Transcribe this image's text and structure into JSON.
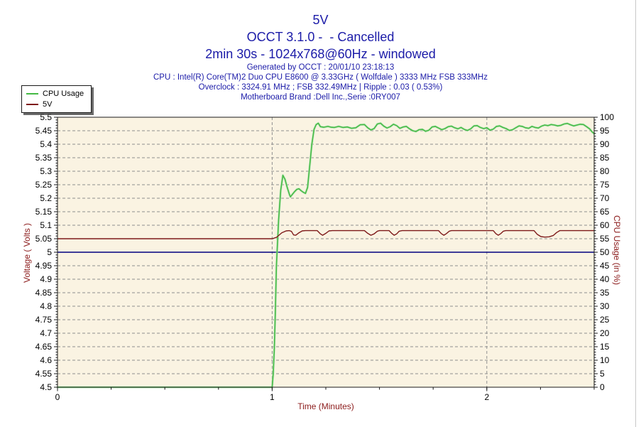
{
  "header": {
    "title": "5V",
    "subtitle": "OCCT 3.1.0 -  - Cancelled",
    "subtitle2": "2min 30s - 1024x768@60Hz - windowed",
    "info_lines": [
      "Generated by OCCT : 20/01/10 23:18:13",
      "CPU : Intel(R) Core(TM)2 Duo CPU E8600 @ 3.33GHz ( Wolfdale ) 3333 MHz FSB 333MHz",
      "Overclock : 3324.91 MHz ; FSB 332.49MHz | Ripple : 0.03 ( 0.53%)",
      "Motherboard Brand :Dell Inc.,Serie :0RY007"
    ]
  },
  "legend": {
    "position": "top-left",
    "items": [
      {
        "label": "CPU Usage",
        "color": "#44b944"
      },
      {
        "label": "5V",
        "color": "#7e1a1a"
      }
    ]
  },
  "colors": {
    "page_bg": "#ffffff",
    "header_text": "#1b1ba8",
    "axis_title": "#8b1a1a",
    "tick_label": "#000000",
    "plot_bg": "#faf3e2",
    "grid": "#8f8f8f",
    "border": "#1a1a1a",
    "cpu_line": "#44b944",
    "cpu_glow": "#b9e8b9",
    "volt_line": "#7e1a1a",
    "ref_line": "#00007f"
  },
  "chart_data": {
    "type": "line",
    "title": "5V",
    "xlabel": "Time (Minutes)",
    "ylabel_left": "Voltage ( Volts )",
    "ylabel_right": "CPU Usage (in %)",
    "xlim": [
      0,
      2.5
    ],
    "ylim_left": [
      4.5,
      5.5
    ],
    "ylim_right": [
      0,
      100
    ],
    "x_ticks": [
      "0",
      "1",
      "2"
    ],
    "x_minor_step": 0.25,
    "x_grid_lines": [
      1,
      2
    ],
    "y_left_ticks": [
      "4.5",
      "4.55",
      "4.6",
      "4.65",
      "4.7",
      "4.75",
      "4.8",
      "4.85",
      "4.9",
      "4.95",
      "5",
      "5.05",
      "5.1",
      "5.15",
      "5.2",
      "5.25",
      "5.3",
      "5.35",
      "5.4",
      "5.45",
      "5.5"
    ],
    "y_left_minor_step": 0.01,
    "y_right_ticks": [
      "0",
      "5",
      "10",
      "15",
      "20",
      "25",
      "30",
      "35",
      "40",
      "45",
      "50",
      "55",
      "60",
      "65",
      "70",
      "75",
      "80",
      "85",
      "90",
      "95",
      "100"
    ],
    "y_right_minor_step": 1,
    "grid": "horizontal dashed at each 0.05V, vertical dashed at whole minutes",
    "reference_line": {
      "axis": "left",
      "value": 5.0,
      "color": "#00007f"
    },
    "series": [
      {
        "name": "CPU Usage",
        "axis": "right",
        "color": "#44b944",
        "glow": "#b9e8b9",
        "points": [
          [
            0,
            0
          ],
          [
            0.2,
            0
          ],
          [
            0.4,
            0
          ],
          [
            0.6,
            0
          ],
          [
            0.8,
            0
          ],
          [
            0.99,
            0
          ],
          [
            1.0,
            0
          ],
          [
            1.005,
            5
          ],
          [
            1.01,
            14
          ],
          [
            1.015,
            28
          ],
          [
            1.02,
            45
          ],
          [
            1.03,
            62
          ],
          [
            1.04,
            73
          ],
          [
            1.05,
            78.5
          ],
          [
            1.06,
            77
          ],
          [
            1.07,
            74
          ],
          [
            1.08,
            71.5
          ],
          [
            1.085,
            70.5
          ],
          [
            1.095,
            71.5
          ],
          [
            1.105,
            72.5
          ],
          [
            1.115,
            73.3
          ],
          [
            1.125,
            73.5
          ],
          [
            1.135,
            72.8
          ],
          [
            1.145,
            72.2
          ],
          [
            1.155,
            71.8
          ],
          [
            1.165,
            74
          ],
          [
            1.175,
            82
          ],
          [
            1.185,
            90
          ],
          [
            1.195,
            95.5
          ],
          [
            1.205,
            97.3
          ],
          [
            1.215,
            97.8
          ],
          [
            1.225,
            96.5
          ],
          [
            1.24,
            96.3
          ],
          [
            1.26,
            96.6
          ],
          [
            1.275,
            96.3
          ],
          [
            1.29,
            96.2
          ],
          [
            1.31,
            96.6
          ],
          [
            1.33,
            96.2
          ],
          [
            1.35,
            96.4
          ],
          [
            1.37,
            95.9
          ],
          [
            1.39,
            96.1
          ],
          [
            1.41,
            97.2
          ],
          [
            1.43,
            97.3
          ],
          [
            1.445,
            96.1
          ],
          [
            1.46,
            95.3
          ],
          [
            1.475,
            95.8
          ],
          [
            1.49,
            97.5
          ],
          [
            1.505,
            97.8
          ],
          [
            1.52,
            96.7
          ],
          [
            1.535,
            96
          ],
          [
            1.55,
            96.5
          ],
          [
            1.565,
            97.4
          ],
          [
            1.58,
            96.9
          ],
          [
            1.595,
            95.9
          ],
          [
            1.61,
            96.4
          ],
          [
            1.625,
            96.6
          ],
          [
            1.64,
            95.7
          ],
          [
            1.655,
            95
          ],
          [
            1.67,
            94.7
          ],
          [
            1.685,
            95.4
          ],
          [
            1.7,
            95.5
          ],
          [
            1.715,
            94.8
          ],
          [
            1.73,
            95.2
          ],
          [
            1.745,
            96.4
          ],
          [
            1.76,
            96.6
          ],
          [
            1.775,
            96
          ],
          [
            1.79,
            95.4
          ],
          [
            1.805,
            95.8
          ],
          [
            1.82,
            96.5
          ],
          [
            1.835,
            96.7
          ],
          [
            1.85,
            96.1
          ],
          [
            1.865,
            95.7
          ],
          [
            1.88,
            96.2
          ],
          [
            1.895,
            95.5
          ],
          [
            1.91,
            95.1
          ],
          [
            1.925,
            95.7
          ],
          [
            1.94,
            96.8
          ],
          [
            1.955,
            96.9
          ],
          [
            1.97,
            96.2
          ],
          [
            1.985,
            95.8
          ],
          [
            2.0,
            96.1
          ],
          [
            2.015,
            95.2
          ],
          [
            2.03,
            95.6
          ],
          [
            2.045,
            96.6
          ],
          [
            2.06,
            96.8
          ],
          [
            2.075,
            96.2
          ],
          [
            2.09,
            95.8
          ],
          [
            2.105,
            95.1
          ],
          [
            2.12,
            95.4
          ],
          [
            2.135,
            96.1
          ],
          [
            2.15,
            96.8
          ],
          [
            2.165,
            96.6
          ],
          [
            2.18,
            96.1
          ],
          [
            2.195,
            95.9
          ],
          [
            2.21,
            96.6
          ],
          [
            2.225,
            96.2
          ],
          [
            2.24,
            96
          ],
          [
            2.255,
            96.7
          ],
          [
            2.27,
            97.1
          ],
          [
            2.285,
            96.9
          ],
          [
            2.3,
            97.3
          ],
          [
            2.315,
            97.1
          ],
          [
            2.33,
            96.8
          ],
          [
            2.345,
            97
          ],
          [
            2.36,
            97.5
          ],
          [
            2.375,
            97.7
          ],
          [
            2.39,
            97.2
          ],
          [
            2.405,
            96.8
          ],
          [
            2.42,
            97.1
          ],
          [
            2.435,
            97.4
          ],
          [
            2.45,
            97.3
          ],
          [
            2.465,
            96.5
          ],
          [
            2.48,
            95.6
          ],
          [
            2.49,
            94.6
          ],
          [
            2.5,
            93.9
          ]
        ]
      },
      {
        "name": "5V",
        "axis": "left",
        "color": "#7e1a1a",
        "points": [
          [
            0,
            5.05
          ],
          [
            0.2,
            5.05
          ],
          [
            0.4,
            5.05
          ],
          [
            0.6,
            5.05
          ],
          [
            0.8,
            5.05
          ],
          [
            1.0,
            5.05
          ],
          [
            1.02,
            5.055
          ],
          [
            1.045,
            5.072
          ],
          [
            1.065,
            5.079
          ],
          [
            1.08,
            5.08
          ],
          [
            1.09,
            5.077
          ],
          [
            1.1,
            5.064
          ],
          [
            1.11,
            5.063
          ],
          [
            1.125,
            5.072
          ],
          [
            1.14,
            5.079
          ],
          [
            1.155,
            5.08
          ],
          [
            1.21,
            5.08
          ],
          [
            1.225,
            5.068
          ],
          [
            1.235,
            5.063
          ],
          [
            1.25,
            5.07
          ],
          [
            1.265,
            5.079
          ],
          [
            1.28,
            5.08
          ],
          [
            1.43,
            5.08
          ],
          [
            1.445,
            5.07
          ],
          [
            1.46,
            5.063
          ],
          [
            1.475,
            5.068
          ],
          [
            1.49,
            5.078
          ],
          [
            1.5,
            5.08
          ],
          [
            1.545,
            5.08
          ],
          [
            1.557,
            5.07
          ],
          [
            1.568,
            5.063
          ],
          [
            1.58,
            5.068
          ],
          [
            1.592,
            5.078
          ],
          [
            1.605,
            5.08
          ],
          [
            1.775,
            5.08
          ],
          [
            1.788,
            5.069
          ],
          [
            1.8,
            5.063
          ],
          [
            1.812,
            5.069
          ],
          [
            1.825,
            5.078
          ],
          [
            1.835,
            5.08
          ],
          [
            2.03,
            5.08
          ],
          [
            2.042,
            5.069
          ],
          [
            2.053,
            5.063
          ],
          [
            2.065,
            5.069
          ],
          [
            2.077,
            5.078
          ],
          [
            2.088,
            5.08
          ],
          [
            2.22,
            5.08
          ],
          [
            2.235,
            5.066
          ],
          [
            2.252,
            5.058
          ],
          [
            2.27,
            5.056
          ],
          [
            2.29,
            5.057
          ],
          [
            2.31,
            5.062
          ],
          [
            2.325,
            5.073
          ],
          [
            2.34,
            5.08
          ],
          [
            2.42,
            5.08
          ],
          [
            2.5,
            5.08
          ]
        ]
      }
    ]
  }
}
